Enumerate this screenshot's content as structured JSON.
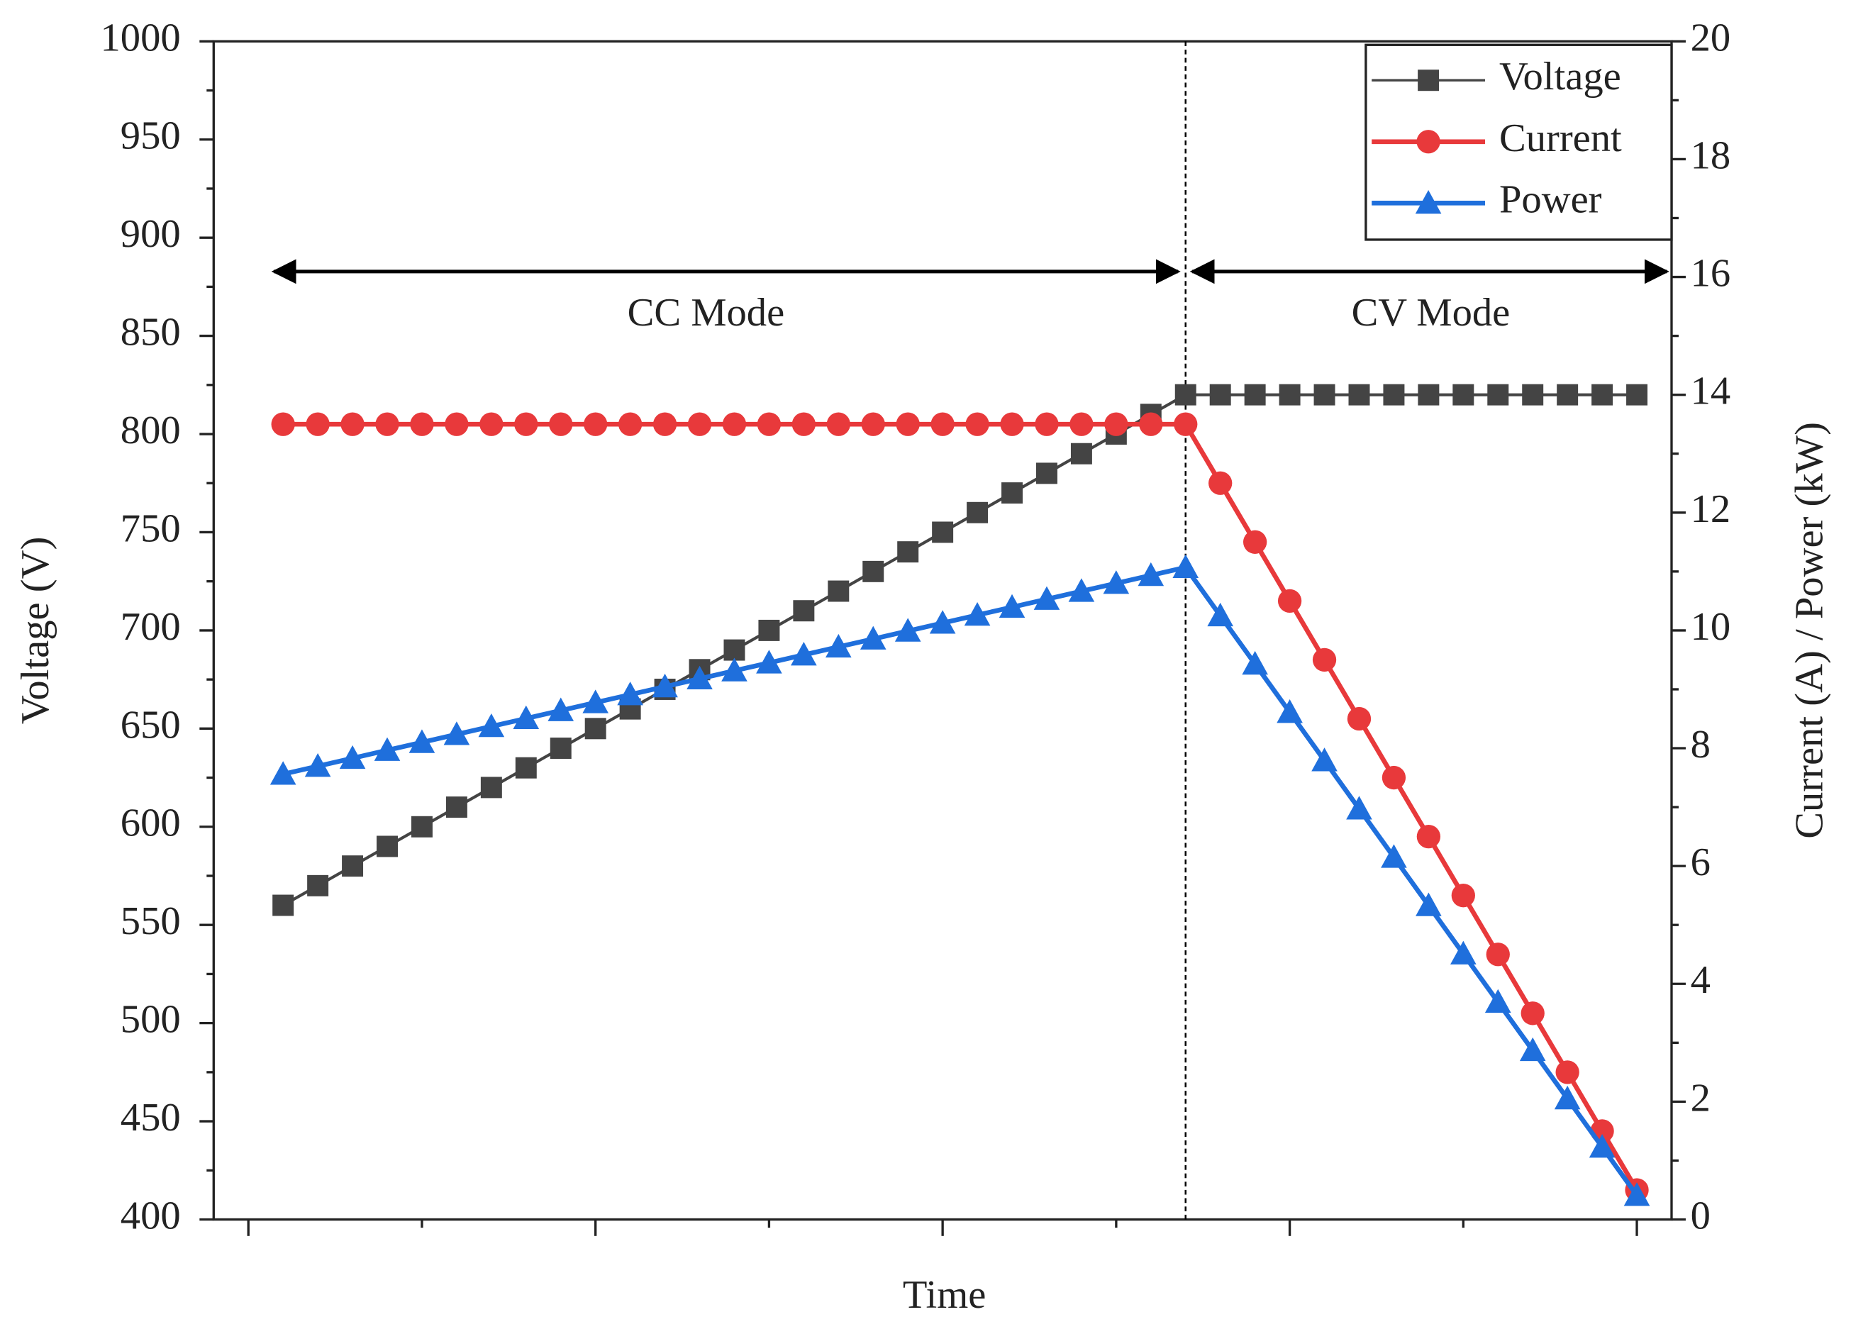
{
  "chart_data": {
    "type": "line",
    "xlabel": "Time",
    "ylabel": "Voltage (V)",
    "y2label": "Current (A) / Power (kW)",
    "x": [
      0,
      1,
      2,
      3,
      4,
      5,
      6,
      7,
      8,
      9,
      10,
      11,
      12,
      13,
      14,
      15,
      16,
      17,
      18,
      19,
      20,
      21,
      22,
      23,
      24,
      25,
      26,
      27,
      28,
      29,
      30,
      31,
      32,
      33,
      34,
      35,
      36,
      37,
      38,
      39
    ],
    "xlim": [
      -2,
      40
    ],
    "xticks": [
      -1,
      4,
      9,
      14,
      19,
      24,
      29,
      34,
      39
    ],
    "ylim": [
      400,
      1000
    ],
    "yticks": [
      400,
      450,
      500,
      550,
      600,
      650,
      700,
      750,
      800,
      850,
      900,
      950,
      1000
    ],
    "y2lim": [
      0,
      20
    ],
    "y2ticks": [
      0,
      2,
      4,
      6,
      8,
      10,
      12,
      14,
      16,
      18,
      20
    ],
    "mode_boundary_x": 26,
    "annotations": [
      "CC Mode",
      "CV Mode"
    ],
    "legend": "upper right",
    "series": [
      {
        "name": "Voltage",
        "color": "#444444",
        "marker": "square",
        "axis": "y",
        "values": [
          560,
          570,
          580,
          590,
          600,
          610,
          620,
          630,
          640,
          650,
          660,
          670,
          680,
          690,
          700,
          710,
          720,
          730,
          740,
          750,
          760,
          770,
          780,
          790,
          800,
          810,
          820,
          820,
          820,
          820,
          820,
          820,
          820,
          820,
          820,
          820,
          820,
          820,
          820,
          820
        ]
      },
      {
        "name": "Current",
        "color": "#e8393b",
        "marker": "circle",
        "axis": "y2",
        "values": [
          13.5,
          13.5,
          13.5,
          13.5,
          13.5,
          13.5,
          13.5,
          13.5,
          13.5,
          13.5,
          13.5,
          13.5,
          13.5,
          13.5,
          13.5,
          13.5,
          13.5,
          13.5,
          13.5,
          13.5,
          13.5,
          13.5,
          13.5,
          13.5,
          13.5,
          13.5,
          13.5,
          12.5,
          11.5,
          10.5,
          9.5,
          8.5,
          7.5,
          6.5,
          5.5,
          4.5,
          3.5,
          2.5,
          1.5,
          0.5
        ]
      },
      {
        "name": "Power",
        "color": "#1f6fdc",
        "marker": "triangle",
        "axis": "y2",
        "values": [
          7.56,
          7.695,
          7.83,
          7.965,
          8.1,
          8.235,
          8.37,
          8.505,
          8.64,
          8.775,
          8.91,
          9.045,
          9.18,
          9.315,
          9.45,
          9.585,
          9.72,
          9.855,
          9.99,
          10.125,
          10.26,
          10.395,
          10.53,
          10.665,
          10.8,
          10.935,
          11.07,
          10.25,
          9.43,
          8.61,
          7.79,
          6.97,
          6.15,
          5.33,
          4.51,
          3.69,
          2.87,
          2.05,
          1.23,
          0.41
        ]
      }
    ]
  }
}
